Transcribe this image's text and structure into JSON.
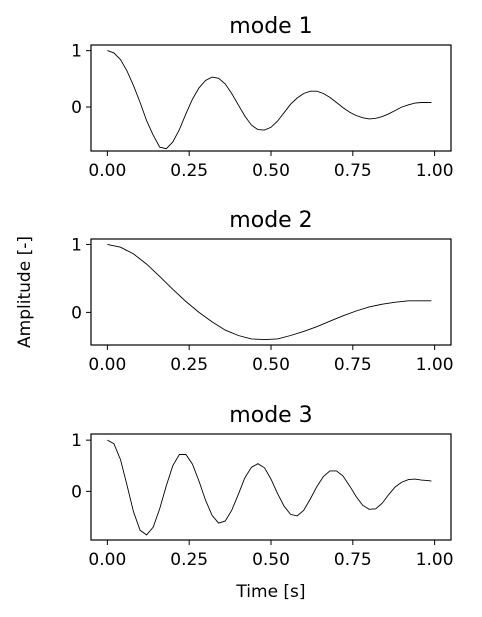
{
  "figure": {
    "xlabel": "Time [s]",
    "ylabel": "Amplitude [-]"
  },
  "chart_data": [
    {
      "type": "line",
      "title": "mode 1",
      "xlim": [
        -0.05,
        1.05
      ],
      "ylim": [
        -0.78,
        1.1
      ],
      "xticks": [
        "0.00",
        "0.25",
        "0.50",
        "0.75",
        "1.00"
      ],
      "yticks": [
        "0",
        "1"
      ],
      "grid": false,
      "series": [
        {
          "x": [
            0.0,
            0.02,
            0.04,
            0.06,
            0.08,
            0.1,
            0.12,
            0.14,
            0.16,
            0.18,
            0.2,
            0.22,
            0.24,
            0.26,
            0.28,
            0.3,
            0.32,
            0.34,
            0.36,
            0.38,
            0.4,
            0.42,
            0.44,
            0.46,
            0.48,
            0.5,
            0.52,
            0.54,
            0.56,
            0.58,
            0.6,
            0.62,
            0.64,
            0.66,
            0.68,
            0.7,
            0.72,
            0.74,
            0.76,
            0.78,
            0.8,
            0.82,
            0.84,
            0.86,
            0.88,
            0.9,
            0.92,
            0.94,
            0.96,
            0.98,
            0.99
          ],
          "y": [
            1.0,
            0.96,
            0.84,
            0.64,
            0.38,
            0.08,
            -0.24,
            -0.5,
            -0.71,
            -0.74,
            -0.62,
            -0.4,
            -0.12,
            0.14,
            0.34,
            0.47,
            0.53,
            0.51,
            0.41,
            0.24,
            0.04,
            -0.16,
            -0.32,
            -0.4,
            -0.41,
            -0.36,
            -0.25,
            -0.1,
            0.05,
            0.16,
            0.24,
            0.28,
            0.28,
            0.24,
            0.17,
            0.08,
            -0.01,
            -0.09,
            -0.15,
            -0.19,
            -0.21,
            -0.2,
            -0.17,
            -0.12,
            -0.06,
            0.0,
            0.04,
            0.07,
            0.08,
            0.08,
            0.08
          ]
        }
      ]
    },
    {
      "type": "line",
      "title": "mode 2",
      "xlim": [
        -0.05,
        1.05
      ],
      "ylim": [
        -0.48,
        1.08
      ],
      "xticks": [
        "0.00",
        "0.25",
        "0.50",
        "0.75",
        "1.00"
      ],
      "yticks": [
        "0",
        "1"
      ],
      "grid": false,
      "series": [
        {
          "x": [
            0.0,
            0.04,
            0.08,
            0.12,
            0.16,
            0.2,
            0.24,
            0.28,
            0.32,
            0.36,
            0.4,
            0.44,
            0.48,
            0.52,
            0.56,
            0.6,
            0.64,
            0.68,
            0.72,
            0.76,
            0.8,
            0.84,
            0.88,
            0.92,
            0.96,
            0.99
          ],
          "y": [
            1.0,
            0.96,
            0.86,
            0.71,
            0.53,
            0.34,
            0.16,
            0.0,
            -0.14,
            -0.26,
            -0.34,
            -0.39,
            -0.4,
            -0.39,
            -0.34,
            -0.28,
            -0.21,
            -0.13,
            -0.05,
            0.02,
            0.08,
            0.12,
            0.15,
            0.17,
            0.17,
            0.17
          ]
        }
      ]
    },
    {
      "type": "line",
      "title": "mode 3",
      "xlim": [
        -0.05,
        1.05
      ],
      "ylim": [
        -0.95,
        1.12
      ],
      "xticks": [
        "0.00",
        "0.25",
        "0.50",
        "0.75",
        "1.00"
      ],
      "yticks": [
        "0",
        "1"
      ],
      "grid": false,
      "series": [
        {
          "x": [
            0.0,
            0.02,
            0.04,
            0.06,
            0.08,
            0.1,
            0.12,
            0.14,
            0.16,
            0.18,
            0.2,
            0.22,
            0.24,
            0.26,
            0.28,
            0.3,
            0.32,
            0.34,
            0.36,
            0.38,
            0.4,
            0.42,
            0.44,
            0.46,
            0.48,
            0.5,
            0.52,
            0.54,
            0.56,
            0.58,
            0.6,
            0.62,
            0.64,
            0.66,
            0.68,
            0.7,
            0.72,
            0.74,
            0.76,
            0.78,
            0.8,
            0.82,
            0.84,
            0.86,
            0.88,
            0.9,
            0.92,
            0.94,
            0.96,
            0.98,
            0.99
          ],
          "y": [
            1.0,
            0.93,
            0.62,
            0.12,
            -0.4,
            -0.76,
            -0.85,
            -0.7,
            -0.34,
            0.11,
            0.5,
            0.72,
            0.72,
            0.53,
            0.2,
            -0.17,
            -0.47,
            -0.62,
            -0.58,
            -0.37,
            -0.06,
            0.26,
            0.47,
            0.54,
            0.46,
            0.24,
            -0.04,
            -0.29,
            -0.45,
            -0.48,
            -0.37,
            -0.15,
            0.09,
            0.29,
            0.4,
            0.4,
            0.3,
            0.11,
            -0.1,
            -0.27,
            -0.35,
            -0.34,
            -0.23,
            -0.06,
            0.09,
            0.18,
            0.23,
            0.24,
            0.22,
            0.21,
            0.2
          ]
        }
      ]
    }
  ]
}
